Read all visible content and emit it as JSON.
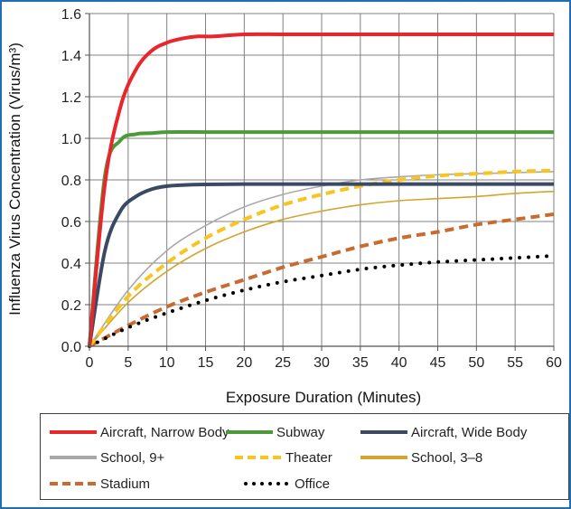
{
  "chart_data": {
    "type": "line",
    "xlabel": "Exposure Duration (Minutes)",
    "ylabel": "Influenza Virus Concentration (Virus/m³)",
    "xlim": [
      0,
      60
    ],
    "ylim": [
      0,
      1.6
    ],
    "x_ticks": [
      "0",
      "5",
      "10",
      "15",
      "20",
      "25",
      "30",
      "35",
      "40",
      "45",
      "50",
      "55",
      "60"
    ],
    "y_ticks": [
      "0.0",
      "0.2",
      "0.4",
      "0.6",
      "0.8",
      "1.0",
      "1.2",
      "1.4",
      "1.6"
    ],
    "grid": true,
    "legend_position": "bottom",
    "series": [
      {
        "name": "Aircraft, Narrow Body",
        "color": "#e8262b",
        "style": "solid-thick",
        "x": [
          0,
          2,
          4,
          6,
          8,
          10,
          12,
          14,
          16,
          20,
          25,
          30,
          40,
          50,
          60
        ],
        "y": [
          0,
          0.78,
          1.15,
          1.33,
          1.42,
          1.46,
          1.48,
          1.49,
          1.49,
          1.5,
          1.5,
          1.5,
          1.5,
          1.5,
          1.5
        ]
      },
      {
        "name": "Subway",
        "color": "#4e9a3a",
        "style": "solid-thick",
        "x": [
          0,
          2,
          4,
          6,
          8,
          10,
          15,
          20,
          30,
          40,
          50,
          60
        ],
        "y": [
          0,
          0.82,
          0.99,
          1.02,
          1.025,
          1.03,
          1.03,
          1.03,
          1.03,
          1.03,
          1.03,
          1.03
        ]
      },
      {
        "name": "Aircraft, Wide Body",
        "color": "#3a4a63",
        "style": "solid-thick",
        "x": [
          0,
          2,
          4,
          6,
          8,
          10,
          12,
          15,
          20,
          25,
          30,
          40,
          50,
          60
        ],
        "y": [
          0,
          0.46,
          0.65,
          0.72,
          0.755,
          0.77,
          0.775,
          0.778,
          0.78,
          0.78,
          0.78,
          0.78,
          0.78,
          0.78
        ]
      },
      {
        "name": "School, 9+",
        "color": "#a9a9a9",
        "style": "solid-thin",
        "x": [
          0,
          5,
          10,
          15,
          20,
          25,
          30,
          35,
          40,
          45,
          50,
          55,
          60
        ],
        "y": [
          0,
          0.27,
          0.46,
          0.58,
          0.67,
          0.73,
          0.77,
          0.8,
          0.815,
          0.825,
          0.83,
          0.835,
          0.84
        ]
      },
      {
        "name": "Theater",
        "color": "#f7c51e",
        "style": "dashed-thick",
        "x": [
          0,
          5,
          10,
          15,
          20,
          25,
          30,
          35,
          40,
          45,
          50,
          55,
          60
        ],
        "y": [
          0,
          0.24,
          0.4,
          0.52,
          0.61,
          0.68,
          0.73,
          0.77,
          0.8,
          0.82,
          0.83,
          0.84,
          0.845
        ]
      },
      {
        "name": "School, 3–8",
        "color": "#d4a52e",
        "style": "solid-thin",
        "x": [
          0,
          5,
          10,
          15,
          20,
          25,
          30,
          35,
          40,
          45,
          50,
          55,
          60
        ],
        "y": [
          0,
          0.21,
          0.36,
          0.47,
          0.55,
          0.61,
          0.65,
          0.68,
          0.7,
          0.71,
          0.72,
          0.735,
          0.745
        ]
      },
      {
        "name": "Stadium",
        "color": "#c96a2e",
        "style": "dashed-thick",
        "x": [
          0,
          5,
          10,
          15,
          20,
          25,
          30,
          35,
          40,
          45,
          50,
          55,
          60
        ],
        "y": [
          0,
          0.1,
          0.19,
          0.26,
          0.32,
          0.38,
          0.43,
          0.48,
          0.52,
          0.55,
          0.585,
          0.61,
          0.635
        ]
      },
      {
        "name": "Office",
        "color": "#000000",
        "style": "dotted",
        "x": [
          0,
          5,
          10,
          15,
          20,
          25,
          30,
          35,
          40,
          45,
          50,
          55,
          60
        ],
        "y": [
          0,
          0.09,
          0.16,
          0.22,
          0.27,
          0.31,
          0.34,
          0.37,
          0.39,
          0.405,
          0.415,
          0.425,
          0.435
        ]
      }
    ]
  }
}
